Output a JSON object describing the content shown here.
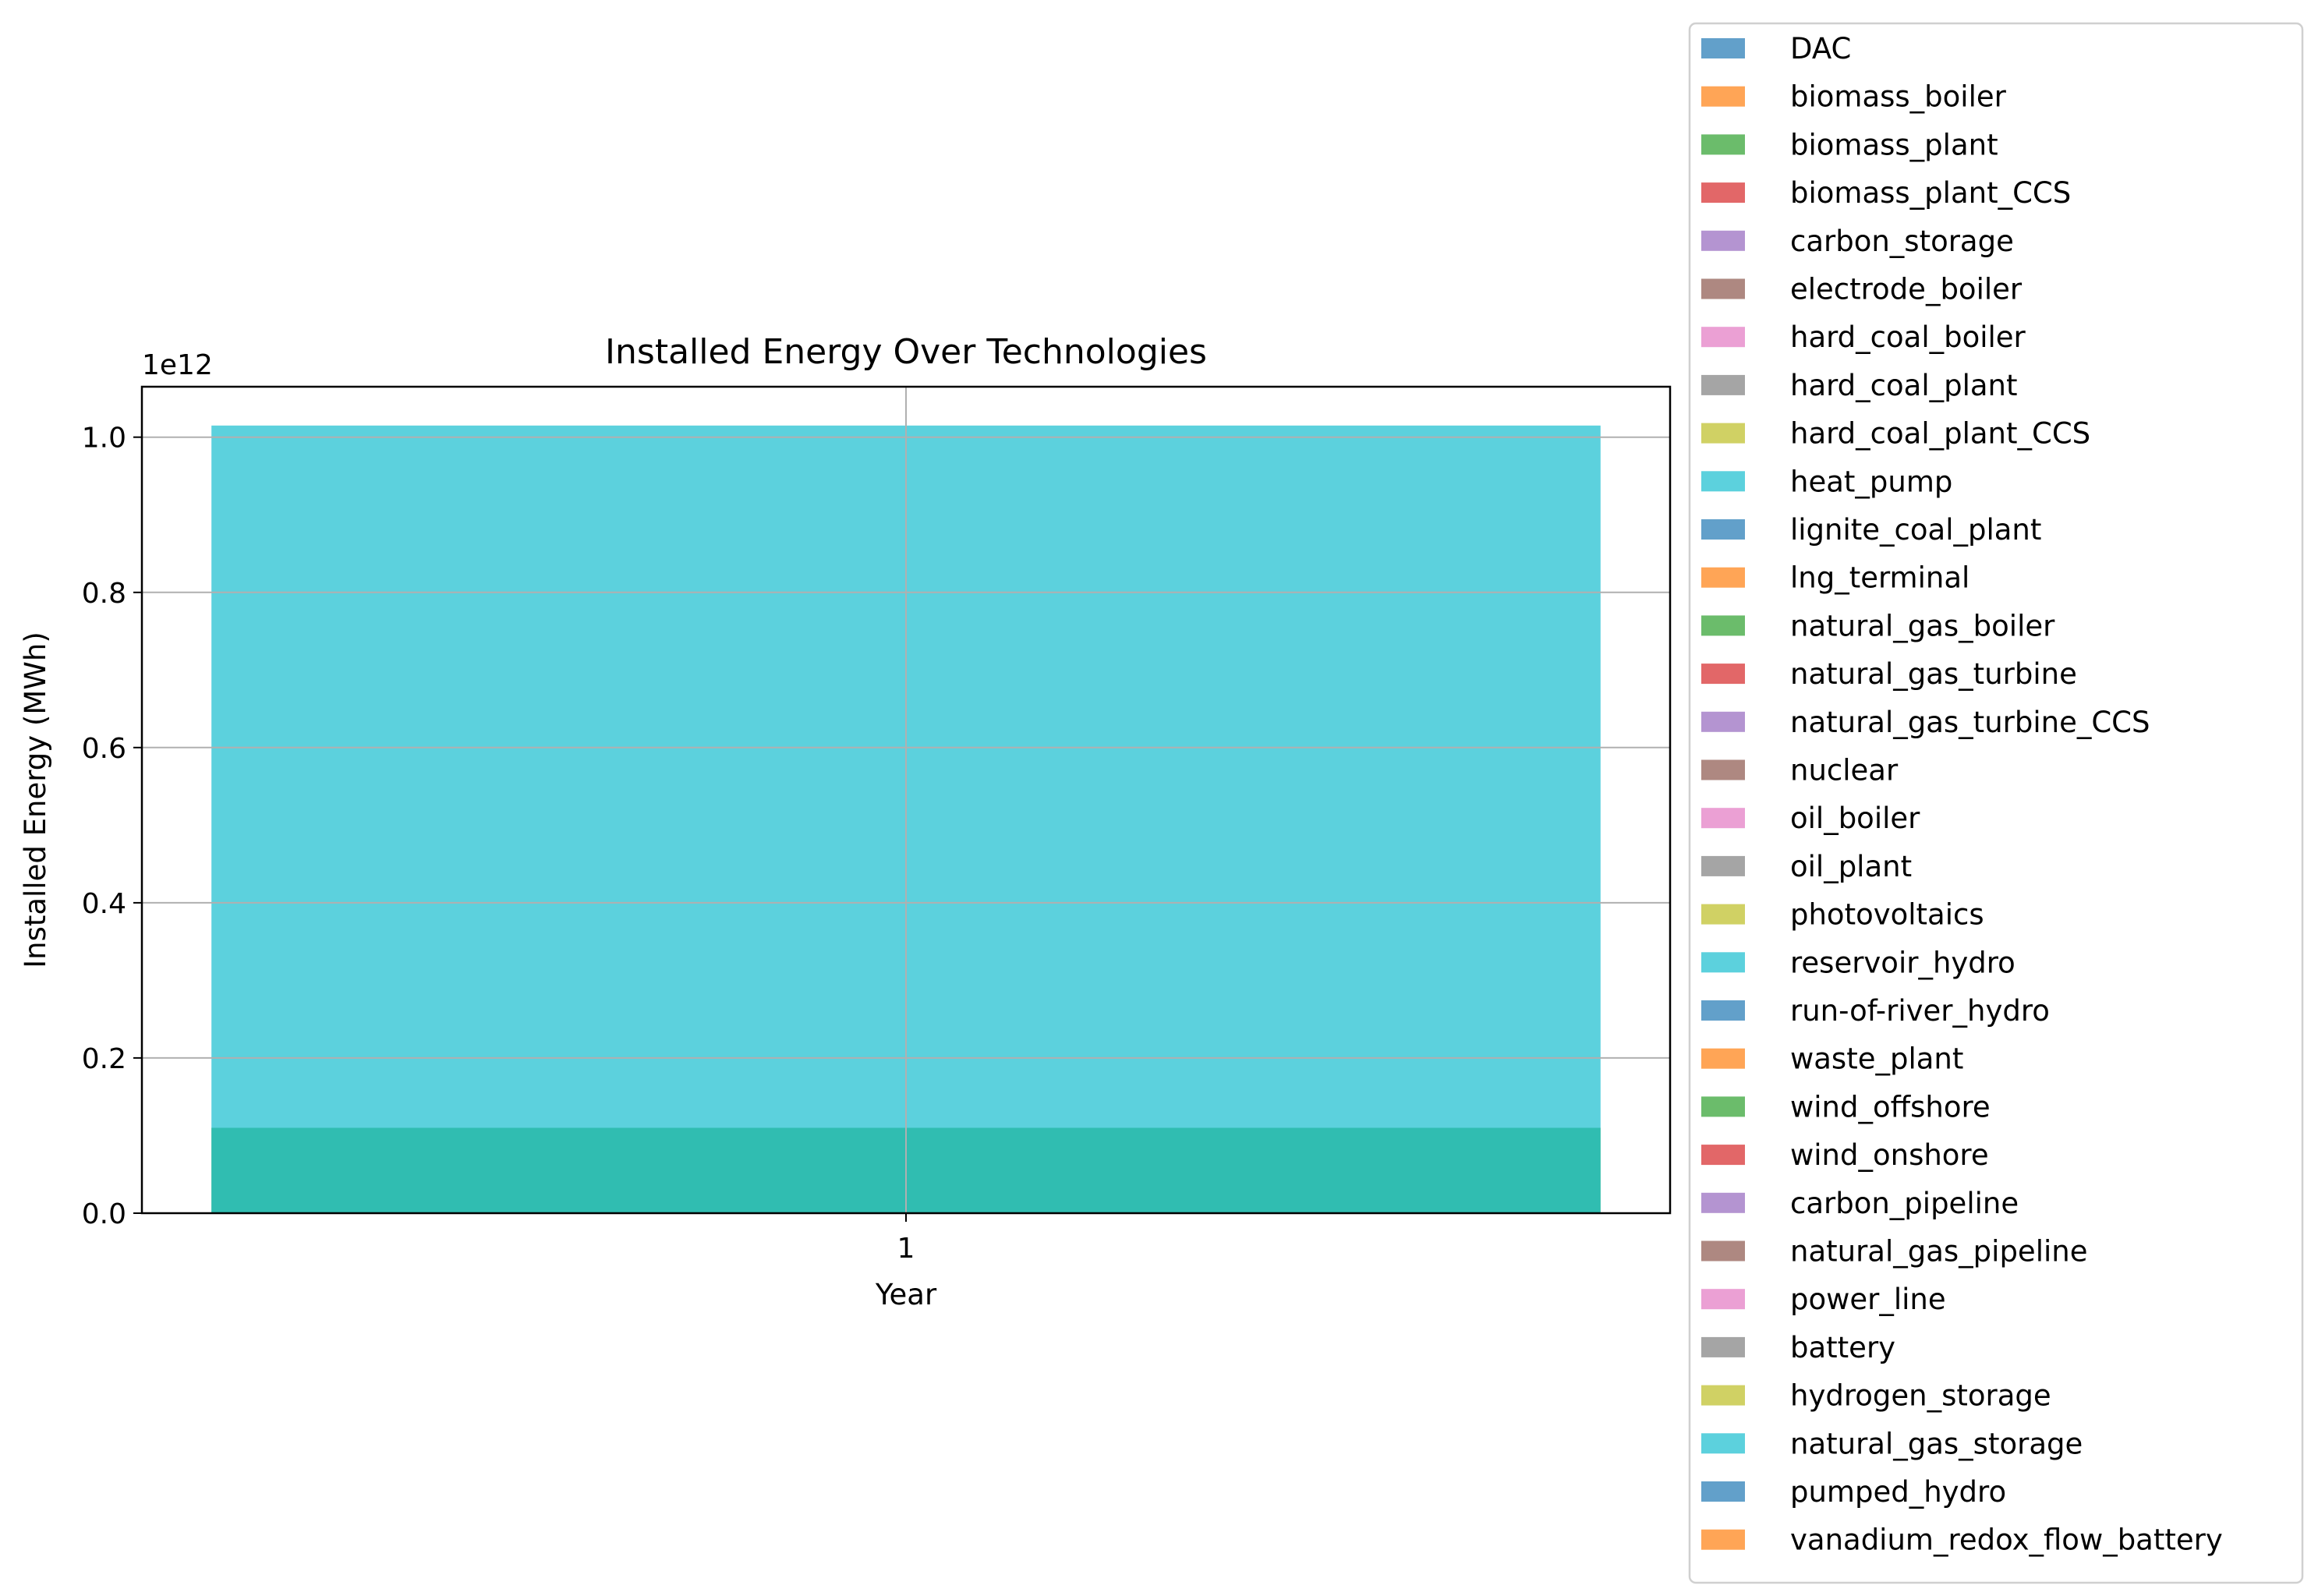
{
  "chart_data": {
    "type": "bar",
    "title": "Installed Energy Over Technologies",
    "xlabel": "Year",
    "ylabel": "Installed Energy (MWh)",
    "y_offset_label": "1e12",
    "categories": [
      "1"
    ],
    "ylim": [
      0,
      1.065
    ],
    "y_ticks": [
      0.0,
      0.2,
      0.4,
      0.6,
      0.8,
      1.0
    ],
    "y_tick_labels": [
      "0.0",
      "0.2",
      "0.4",
      "0.6",
      "0.8",
      "1.0"
    ],
    "grid": true,
    "legend_position": "right",
    "stacking": "overlapping, semi-transparent",
    "series": [
      {
        "name": "DAC",
        "color": "#1f77b4",
        "values": [
          0
        ]
      },
      {
        "name": "biomass_boiler",
        "color": "#ff7f0e",
        "values": [
          0
        ]
      },
      {
        "name": "biomass_plant",
        "color": "#2ca02c",
        "values": [
          0.11
        ]
      },
      {
        "name": "biomass_plant_CCS",
        "color": "#d62728",
        "values": [
          0
        ]
      },
      {
        "name": "carbon_storage",
        "color": "#9467bd",
        "values": [
          0
        ]
      },
      {
        "name": "electrode_boiler",
        "color": "#8c564b",
        "values": [
          0
        ]
      },
      {
        "name": "hard_coal_boiler",
        "color": "#e377c2",
        "values": [
          0
        ]
      },
      {
        "name": "hard_coal_plant",
        "color": "#7f7f7f",
        "values": [
          0
        ]
      },
      {
        "name": "hard_coal_plant_CCS",
        "color": "#bcbd22",
        "values": [
          0
        ]
      },
      {
        "name": "heat_pump",
        "color": "#17becf",
        "values": [
          1.015
        ]
      },
      {
        "name": "lignite_coal_plant",
        "color": "#1f77b4",
        "values": [
          0
        ]
      },
      {
        "name": "lng_terminal",
        "color": "#ff7f0e",
        "values": [
          0
        ]
      },
      {
        "name": "natural_gas_boiler",
        "color": "#2ca02c",
        "values": [
          0
        ]
      },
      {
        "name": "natural_gas_turbine",
        "color": "#d62728",
        "values": [
          0
        ]
      },
      {
        "name": "natural_gas_turbine_CCS",
        "color": "#9467bd",
        "values": [
          0
        ]
      },
      {
        "name": "nuclear",
        "color": "#8c564b",
        "values": [
          0
        ]
      },
      {
        "name": "oil_boiler",
        "color": "#e377c2",
        "values": [
          0
        ]
      },
      {
        "name": "oil_plant",
        "color": "#7f7f7f",
        "values": [
          0
        ]
      },
      {
        "name": "photovoltaics",
        "color": "#bcbd22",
        "values": [
          0
        ]
      },
      {
        "name": "reservoir_hydro",
        "color": "#17becf",
        "values": [
          0
        ]
      },
      {
        "name": "run-of-river_hydro",
        "color": "#1f77b4",
        "values": [
          0
        ]
      },
      {
        "name": "waste_plant",
        "color": "#ff7f0e",
        "values": [
          0
        ]
      },
      {
        "name": "wind_offshore",
        "color": "#2ca02c",
        "values": [
          0
        ]
      },
      {
        "name": "wind_onshore",
        "color": "#d62728",
        "values": [
          0
        ]
      },
      {
        "name": "carbon_pipeline",
        "color": "#9467bd",
        "values": [
          0
        ]
      },
      {
        "name": "natural_gas_pipeline",
        "color": "#8c564b",
        "values": [
          0
        ]
      },
      {
        "name": "power_line",
        "color": "#e377c2",
        "values": [
          0
        ]
      },
      {
        "name": "battery",
        "color": "#7f7f7f",
        "values": [
          0
        ]
      },
      {
        "name": "hydrogen_storage",
        "color": "#bcbd22",
        "values": [
          0
        ]
      },
      {
        "name": "natural_gas_storage",
        "color": "#17becf",
        "values": [
          0
        ]
      },
      {
        "name": "pumped_hydro",
        "color": "#1f77b4",
        "values": [
          0
        ]
      },
      {
        "name": "vanadium_redox_flow_battery",
        "color": "#ff7f0e",
        "values": [
          0
        ]
      }
    ]
  }
}
